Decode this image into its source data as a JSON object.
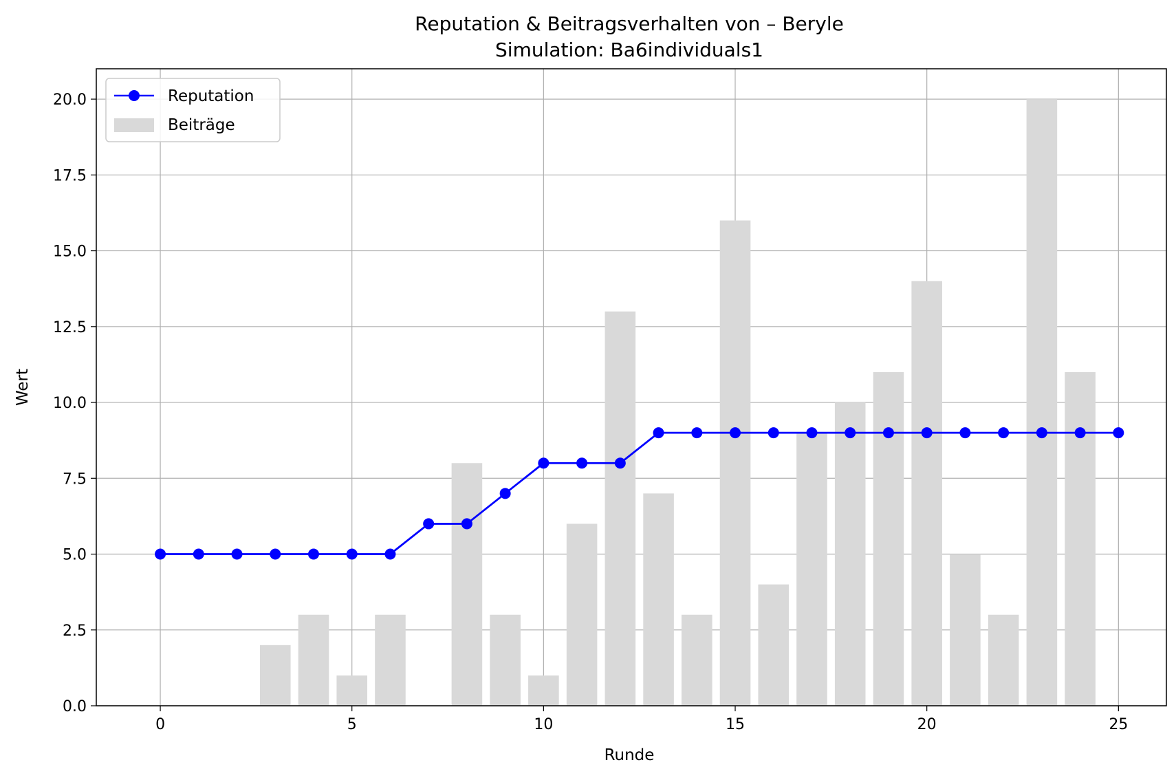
{
  "chart_data": {
    "type": "bar",
    "title": "Reputation & Beitragsverhalten von – Beryle",
    "subtitle": "Simulation: Ba6individuals1",
    "xlabel": "Runde",
    "ylabel": "Wert",
    "xlim": [
      -1.67,
      26.25
    ],
    "ylim": [
      0,
      21
    ],
    "xticks": [
      0,
      5,
      10,
      15,
      20,
      25
    ],
    "yticks": [
      0.0,
      2.5,
      5.0,
      7.5,
      10.0,
      12.5,
      15.0,
      17.5,
      20.0
    ],
    "ytick_labels": [
      "0.0",
      "2.5",
      "5.0",
      "7.5",
      "10.0",
      "12.5",
      "15.0",
      "17.5",
      "20.0"
    ],
    "grid": true,
    "legend_position": "upper-left",
    "series": [
      {
        "name": "Reputation",
        "kind": "line",
        "color": "#0000ff",
        "x": [
          0,
          1,
          2,
          3,
          4,
          5,
          6,
          7,
          8,
          9,
          10,
          11,
          12,
          13,
          14,
          15,
          16,
          17,
          18,
          19,
          20,
          21,
          22,
          23,
          24,
          25
        ],
        "values": [
          5,
          5,
          5,
          5,
          5,
          5,
          5,
          6,
          6,
          7,
          8,
          8,
          8,
          9,
          9,
          9,
          9,
          9,
          9,
          9,
          9,
          9,
          9,
          9,
          9,
          9
        ]
      },
      {
        "name": "Beiträge",
        "kind": "bar",
        "color": "#d9d9d9",
        "x": [
          0,
          1,
          2,
          3,
          4,
          5,
          6,
          7,
          8,
          9,
          10,
          11,
          12,
          13,
          14,
          15,
          16,
          17,
          18,
          19,
          20,
          21,
          22,
          23,
          24
        ],
        "values": [
          0,
          0,
          0,
          2,
          3,
          1,
          3,
          0,
          8,
          3,
          1,
          6,
          13,
          7,
          3,
          16,
          4,
          9,
          10,
          11,
          14,
          5,
          3,
          20,
          11
        ]
      }
    ]
  }
}
